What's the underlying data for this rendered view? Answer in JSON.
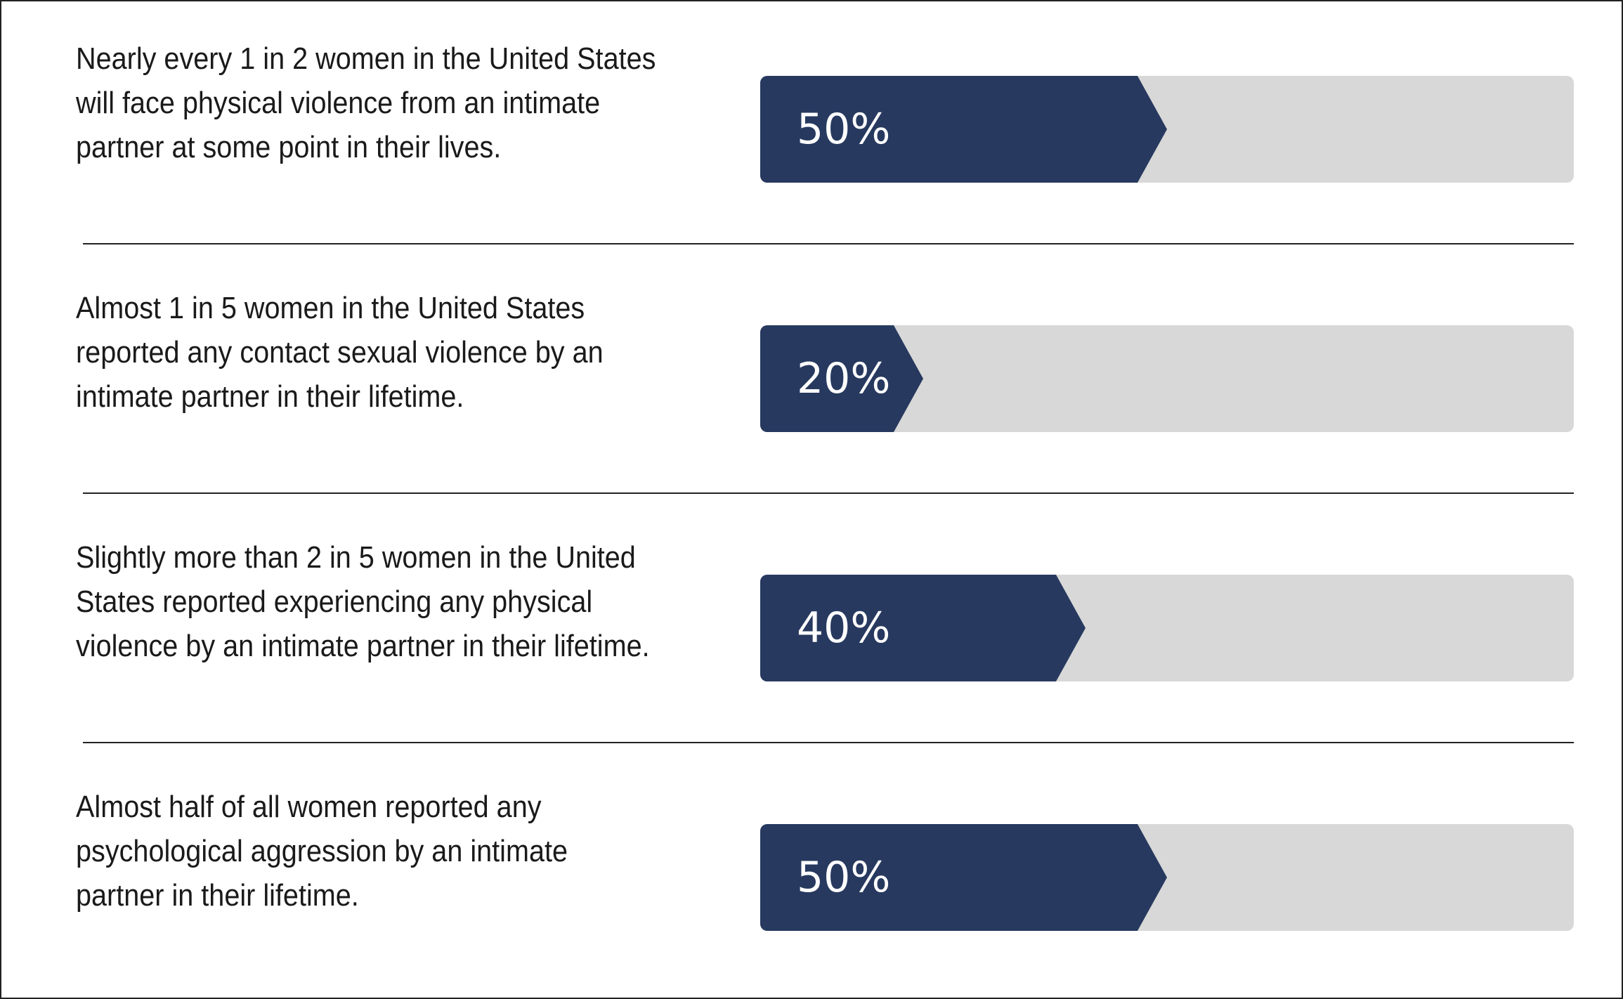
{
  "chart_data": {
    "type": "bar",
    "orientation": "horizontal",
    "categories": [
      "Nearly every 1 in 2 women in the United States will face physical violence from an intimate partner at some point in their lives.",
      "Almost 1 in 5 women in the United States reported any contact sexual violence by an intimate partner in their lifetime.",
      "Slightly more than 2 in 5 women in the United States reported experiencing any physical violence by an intimate partner in their lifetime.",
      "Almost half of all women reported any psychological aggression by an intimate partner in their lifetime."
    ],
    "values": [
      50,
      20,
      40,
      50
    ],
    "value_labels": [
      "50%",
      "20%",
      "40%",
      "50%"
    ],
    "xlim": [
      0,
      100
    ],
    "unit": "%",
    "grid": false,
    "colors": {
      "fill": "#27395f",
      "track": "#d8d8d8",
      "label": "#ffffff",
      "text": "#1a1a1a",
      "divider": "#222222"
    }
  }
}
